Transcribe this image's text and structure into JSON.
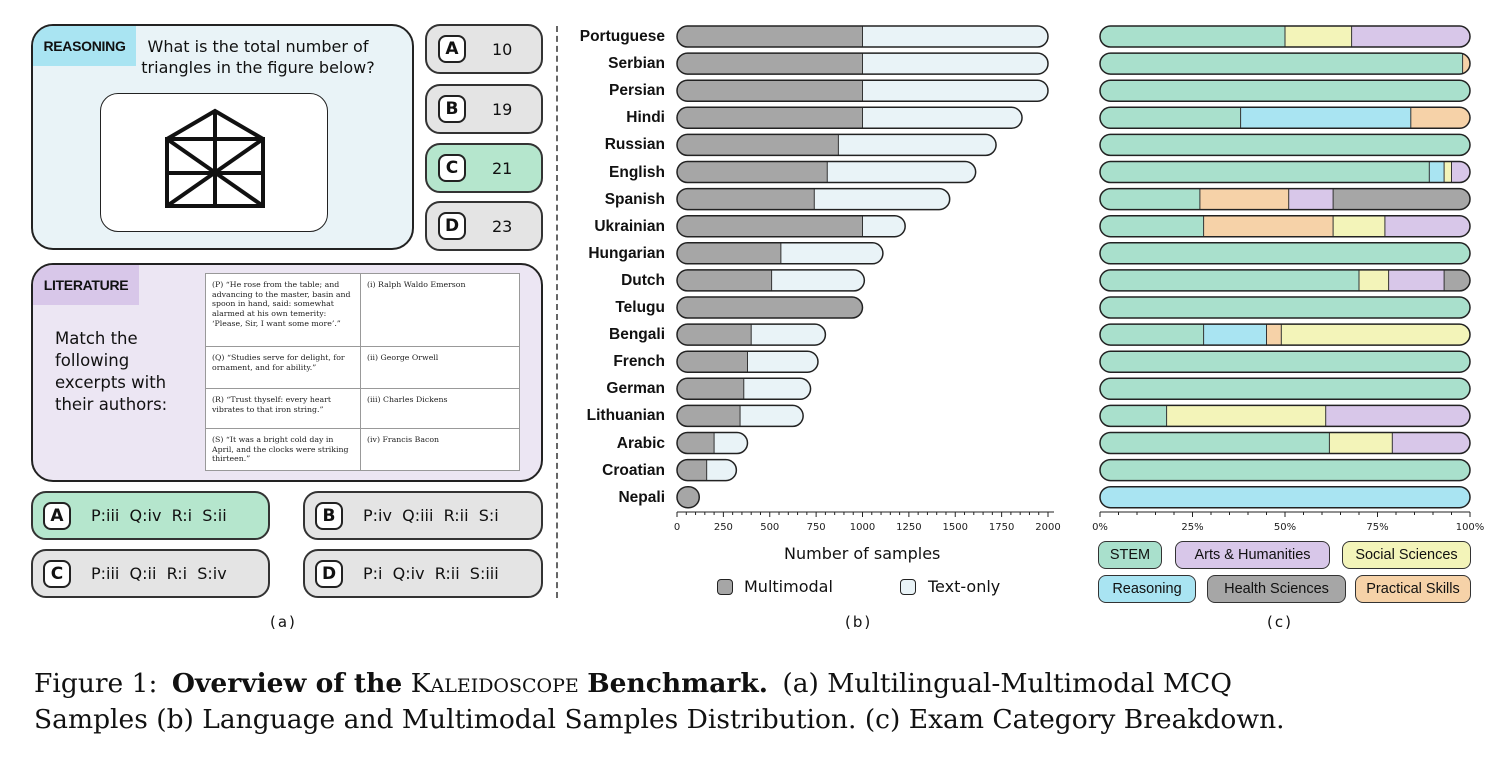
{
  "panel_a": {
    "reasoning": {
      "tag": "REASONING",
      "question": "What is the total number of triangles  in the figure below?",
      "options": [
        {
          "letter": "A",
          "value": "10",
          "correct": false
        },
        {
          "letter": "B",
          "value": "19",
          "correct": false
        },
        {
          "letter": "C",
          "value": "21",
          "correct": true
        },
        {
          "letter": "D",
          "value": "23",
          "correct": false
        }
      ]
    },
    "literature": {
      "tag": "LITERATURE",
      "question": "Match the following excerpts with their authors:",
      "table": [
        {
          "excerpt": "(P) “He rose from the table; and advancing to the master, basin and spoon in hand, said: somewhat alarmed at his own temerity: ‘Please, Sir, I want some more’.”",
          "author": "(i) Ralph Waldo Emerson"
        },
        {
          "excerpt": "(Q) “Studies serve for delight, for ornament, and for ability.”",
          "author": "(ii) George Orwell"
        },
        {
          "excerpt": "(R) “Trust thyself: every heart vibrates to that iron string.”",
          "author": "(iii) Charles Dickens"
        },
        {
          "excerpt": "(S) “It was a bright cold day in April, and the clocks were striking thirteen.”",
          "author": "(iv) Francis Bacon"
        }
      ],
      "options": [
        {
          "letter": "A",
          "value": "P:iii  Q:iv  R:i  S:ii",
          "correct": true
        },
        {
          "letter": "B",
          "value": "P:iv  Q:iii  R:ii  S:i",
          "correct": false
        },
        {
          "letter": "C",
          "value": "P:iii  Q:ii  R:i  S:iv",
          "correct": false
        },
        {
          "letter": "D",
          "value": "P:i  Q:iv  R:ii  S:iii",
          "correct": false
        }
      ]
    },
    "label": "(a)"
  },
  "panel_b_label": "(b)",
  "panel_c_label": "(c)",
  "chart_data": [
    {
      "type": "bar",
      "orientation": "horizontal",
      "stacked": true,
      "categories": [
        "Portuguese",
        "Serbian",
        "Persian",
        "Hindi",
        "Russian",
        "English",
        "Spanish",
        "Ukrainian",
        "Hungarian",
        "Dutch",
        "Telugu",
        "Bengali",
        "French",
        "German",
        "Lithuanian",
        "Arabic",
        "Croatian",
        "Nepali"
      ],
      "series": [
        {
          "name": "Multimodal",
          "color": "#a6a6a6",
          "values": [
            1000,
            1000,
            1000,
            1000,
            870,
            810,
            740,
            1000,
            560,
            510,
            1000,
            400,
            380,
            360,
            340,
            200,
            160,
            120
          ]
        },
        {
          "name": "Text-only",
          "color": "#e9f3f7",
          "values": [
            1000,
            1000,
            1000,
            860,
            850,
            800,
            730,
            230,
            550,
            500,
            0,
            400,
            380,
            360,
            340,
            180,
            160,
            0
          ]
        }
      ],
      "xlabel": "Number of samples",
      "xlim": [
        0,
        2000
      ],
      "xticks": [
        "0",
        "250",
        "500",
        "750",
        "1000",
        "1250",
        "1500",
        "1750",
        "2000"
      ],
      "legend_position": "bottom"
    },
    {
      "type": "bar",
      "orientation": "horizontal",
      "stacked": true,
      "normalized": true,
      "categories": [
        "Portuguese",
        "Serbian",
        "Persian",
        "Hindi",
        "Russian",
        "English",
        "Spanish",
        "Ukrainian",
        "Hungarian",
        "Dutch",
        "Telugu",
        "Bengali",
        "French",
        "German",
        "Lithuanian",
        "Arabic",
        "Croatian",
        "Nepali"
      ],
      "series": [
        {
          "name": "STEM",
          "color": "#a9e0cc",
          "values": [
            50,
            98,
            100,
            38,
            100,
            89,
            27,
            28,
            100,
            70,
            100,
            28,
            100,
            100,
            18,
            62,
            100,
            0
          ]
        },
        {
          "name": "Reasoning",
          "color": "#a9e4f2",
          "values": [
            0,
            0,
            0,
            46,
            0,
            4,
            0,
            0,
            0,
            0,
            0,
            17,
            0,
            0,
            0,
            0,
            0,
            100
          ]
        },
        {
          "name": "Practical Skills",
          "color": "#f6d2a8",
          "values": [
            0,
            2,
            0,
            16,
            0,
            0,
            24,
            35,
            0,
            0,
            0,
            4,
            0,
            0,
            0,
            0,
            0,
            0
          ]
        },
        {
          "name": "Social Sciences",
          "color": "#f3f4b9",
          "values": [
            18,
            0,
            0,
            0,
            0,
            2,
            0,
            14,
            0,
            8,
            0,
            51,
            0,
            0,
            43,
            17,
            0,
            0
          ]
        },
        {
          "name": "Arts & Humanities",
          "color": "#d8c7e9",
          "values": [
            32,
            0,
            0,
            0,
            0,
            5,
            12,
            23,
            0,
            15,
            0,
            0,
            0,
            0,
            39,
            21,
            0,
            0
          ]
        },
        {
          "name": "Health Sciences",
          "color": "#a6a6a6",
          "values": [
            0,
            0,
            0,
            0,
            0,
            0,
            37,
            0,
            0,
            7,
            0,
            0,
            0,
            0,
            0,
            0,
            0,
            0
          ]
        }
      ],
      "xticks": [
        "0%",
        "25%",
        "50%",
        "75%",
        "100%"
      ],
      "xlim": [
        0,
        100
      ],
      "legend_position": "bottom",
      "legend_order": [
        "STEM",
        "Arts & Humanities",
        "Social Sciences",
        "Reasoning",
        "Health Sciences",
        "Practical Skills"
      ]
    }
  ],
  "caption": {
    "figure_num": "Figure 1:",
    "bold_title": "Overview of the",
    "kaleidoscope": "Kaleidoscope",
    "bold_end": "Benchmark.",
    "line1_rest": "(a) Multilingual-Multimodal MCQ",
    "line2": "Samples (b) Language and Multimodal Samples Distribution. (c) Exam Category Breakdown."
  }
}
